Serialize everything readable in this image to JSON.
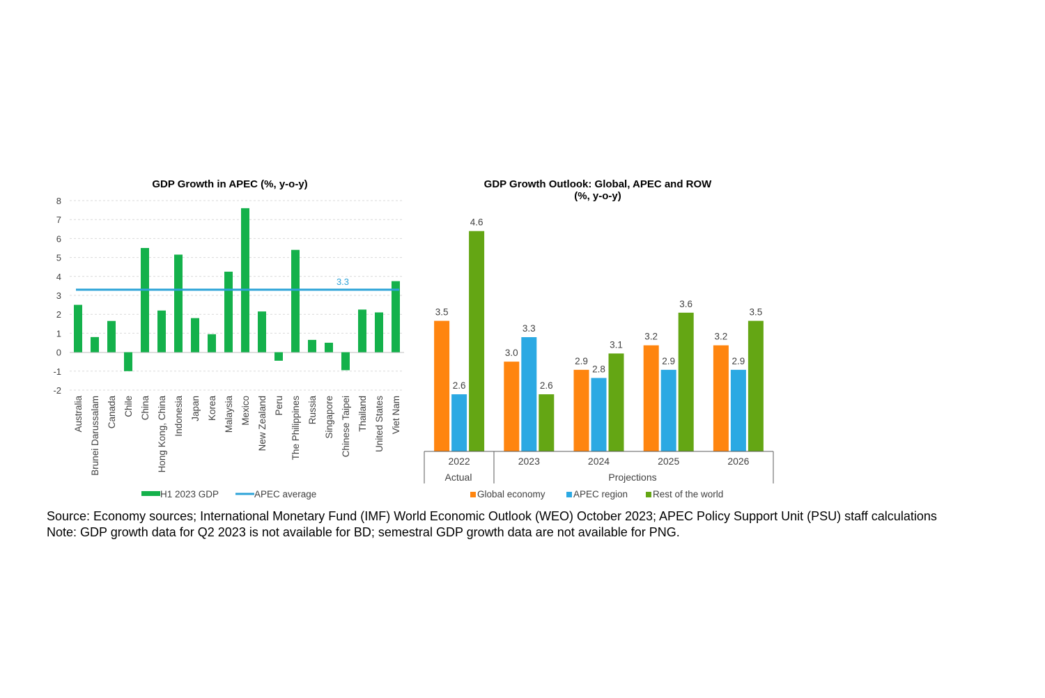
{
  "chart_data": [
    {
      "type": "bar",
      "title": "GDP Growth in APEC (%, y-o-y)",
      "categories": [
        "Australia",
        "Brunei Darussalam",
        "Canada",
        "Chile",
        "China",
        "Hong Kong, China",
        "Indonesia",
        "Japan",
        "Korea",
        "Malaysia",
        "Mexico",
        "New Zealand",
        "Peru",
        "The Philippines",
        "Russia",
        "Singapore",
        "Chinese Taipei",
        "Thailand",
        "United States",
        "Viet Nam"
      ],
      "series": [
        {
          "name": "H1 2023 GDP",
          "color": "#14b14b",
          "values": [
            2.5,
            0.8,
            1.65,
            -1.0,
            5.5,
            2.2,
            5.15,
            1.8,
            0.95,
            4.25,
            7.6,
            2.15,
            -0.45,
            5.4,
            0.65,
            0.5,
            -0.95,
            2.25,
            2.1,
            3.75
          ]
        }
      ],
      "reference_line": {
        "name": "APEC average",
        "value": 3.3,
        "label": "3.3",
        "color": "#2ca3d8"
      },
      "yticks": [
        "8",
        "7",
        "6",
        "5",
        "4",
        "3",
        "2",
        "1",
        "0",
        "-1",
        "-2"
      ],
      "ylim": [
        -2,
        8
      ],
      "grid": true,
      "legend_position": "bottom",
      "legend": [
        "H1 2023 GDP",
        "APEC average"
      ]
    },
    {
      "type": "bar",
      "title": "GDP Growth Outlook: Global, APEC and ROW",
      "subtitle": "(%, y-o-y)",
      "categories": [
        "2022",
        "2023",
        "2024",
        "2025",
        "2026"
      ],
      "category_groups": [
        {
          "label": "Actual",
          "categories": [
            "2022"
          ]
        },
        {
          "label": "Projections",
          "categories": [
            "2023",
            "2024",
            "2025",
            "2026"
          ]
        }
      ],
      "series": [
        {
          "name": "Global economy",
          "color": "#ff850f",
          "values": [
            3.5,
            3.0,
            2.9,
            3.2,
            3.2
          ],
          "labels": [
            "3.5",
            "3.0",
            "2.9",
            "3.2",
            "3.2"
          ]
        },
        {
          "name": "APEC region",
          "color": "#2ba9e3",
          "values": [
            2.6,
            3.3,
            2.8,
            2.9,
            2.9
          ],
          "labels": [
            "2.6",
            "3.3",
            "2.8",
            "2.9",
            "2.9"
          ]
        },
        {
          "name": "Rest of the world",
          "color": "#64a614",
          "values": [
            4.6,
            2.6,
            3.1,
            3.6,
            3.5
          ],
          "labels": [
            "4.6",
            "2.6",
            "3.1",
            "3.6",
            "3.5"
          ]
        }
      ],
      "ylim": [
        1.9,
        4.7
      ],
      "grid": false,
      "legend_position": "bottom",
      "legend": [
        "Global economy",
        "APEC region",
        "Rest of the world"
      ]
    }
  ],
  "footer": {
    "source": "Source: Economy sources; International Monetary Fund (IMF) World Economic Outlook (WEO) October 2023; APEC Policy Support Unit (PSU) staff calculations",
    "note": "Note: GDP growth data for Q2 2023 is not available for BD; semestral GDP growth data are not available for PNG."
  }
}
